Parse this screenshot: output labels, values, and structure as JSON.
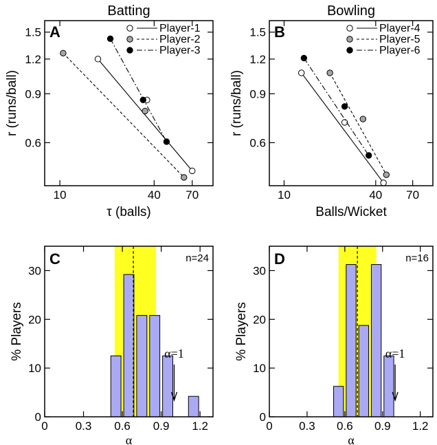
{
  "chart_data": [
    {
      "panel": "A",
      "type": "scatter",
      "title": "Batting",
      "xlabel": "τ (balls)",
      "ylabel": "r (runs/ball)",
      "xscale": "log",
      "yscale": "log",
      "xlim": [
        8,
        95
      ],
      "ylim": [
        0.42,
        1.65
      ],
      "xticks": [
        10,
        40,
        70
      ],
      "yticks": [
        0.6,
        0.9,
        1.2,
        1.5
      ],
      "legend_position": "top-right",
      "series": [
        {
          "name": "Player-1",
          "marker": "open",
          "line": "solid",
          "x": [
            17.5,
            36,
            70
          ],
          "y": [
            1.2,
            0.855,
            0.475
          ],
          "fit": [
            [
              17.5,
              1.2
            ],
            [
              70,
              0.475
            ]
          ]
        },
        {
          "name": "Player-2",
          "marker": "gray",
          "line": "dashed",
          "x": [
            10.5,
            35,
            62
          ],
          "y": [
            1.26,
            0.78,
            0.45
          ],
          "fit": [
            [
              10.5,
              1.26
            ],
            [
              62,
              0.45
            ]
          ]
        },
        {
          "name": "Player-3",
          "marker": "black",
          "line": "dashdot",
          "x": [
            21,
            34,
            48
          ],
          "y": [
            1.42,
            0.855,
            0.605
          ],
          "fit": [
            [
              21,
              1.42
            ],
            [
              48,
              0.605
            ]
          ]
        }
      ]
    },
    {
      "panel": "B",
      "type": "scatter",
      "title": "Bowling",
      "xlabel": "Balls/Wicket",
      "ylabel": "r (runs/ball)",
      "xscale": "log",
      "yscale": "log",
      "xlim": [
        8,
        95
      ],
      "ylim": [
        0.42,
        1.65
      ],
      "xticks": [
        10,
        40,
        70
      ],
      "yticks": [
        0.6,
        0.9,
        1.2,
        1.5
      ],
      "legend_position": "top-right",
      "series": [
        {
          "name": "Player-4",
          "marker": "open",
          "line": "solid",
          "x": [
            13,
            25,
            45
          ],
          "y": [
            1.07,
            0.71,
            0.43
          ],
          "fit": [
            [
              13,
              1.07
            ],
            [
              45,
              0.43
            ]
          ]
        },
        {
          "name": "Player-5",
          "marker": "gray",
          "line": "dashed",
          "x": [
            20,
            33,
            47
          ],
          "y": [
            1.07,
            0.73,
            0.46
          ],
          "fit": [
            [
              20,
              1.07
            ],
            [
              47,
              0.46
            ]
          ]
        },
        {
          "name": "Player-6",
          "marker": "black",
          "line": "dashdot",
          "x": [
            13.5,
            25,
            36
          ],
          "y": [
            1.21,
            0.81,
            0.54
          ],
          "fit": [
            [
              13.5,
              1.21
            ],
            [
              36,
              0.54
            ]
          ]
        }
      ]
    },
    {
      "panel": "C",
      "type": "bar",
      "title": "",
      "xlabel": "α",
      "ylabel": "% Players",
      "xlim": [
        0,
        1.3
      ],
      "ylim": [
        0,
        35
      ],
      "xticks": [
        0,
        0.3,
        0.6,
        0.9,
        1.2
      ],
      "yticks": [
        0,
        10,
        20,
        30
      ],
      "n_label": "n=24",
      "bin_width": 0.1,
      "bins": [
        0.5,
        0.6,
        0.7,
        0.8,
        0.9,
        1.0,
        1.1
      ],
      "values": [
        12.5,
        29.2,
        20.8,
        20.8,
        12.5,
        0,
        4.2
      ],
      "mean": 0.685,
      "band": [
        0.54,
        0.86
      ],
      "arrow_label": "α=1",
      "arrow_x": 1.0
    },
    {
      "panel": "D",
      "type": "bar",
      "title": "",
      "xlabel": "α",
      "ylabel": "% Players",
      "xlim": [
        0,
        1.3
      ],
      "ylim": [
        0,
        35
      ],
      "xticks": [
        0,
        0.3,
        0.6,
        0.9,
        1.2
      ],
      "yticks": [
        0,
        10,
        20,
        30
      ],
      "n_label": "n=16",
      "bin_width": 0.1,
      "bins": [
        0.5,
        0.6,
        0.7,
        0.8,
        0.9
      ],
      "values": [
        6.25,
        31.25,
        18.75,
        31.25,
        12.5
      ],
      "mean": 0.7,
      "band": [
        0.55,
        0.85
      ],
      "arrow_label": "α=1",
      "arrow_x": 1.0
    }
  ],
  "colors": {
    "band": "#ffff22",
    "bar_fill": "#aaaaf4",
    "bar_stroke": "#000000",
    "gray_marker": "#a6a6a6"
  }
}
